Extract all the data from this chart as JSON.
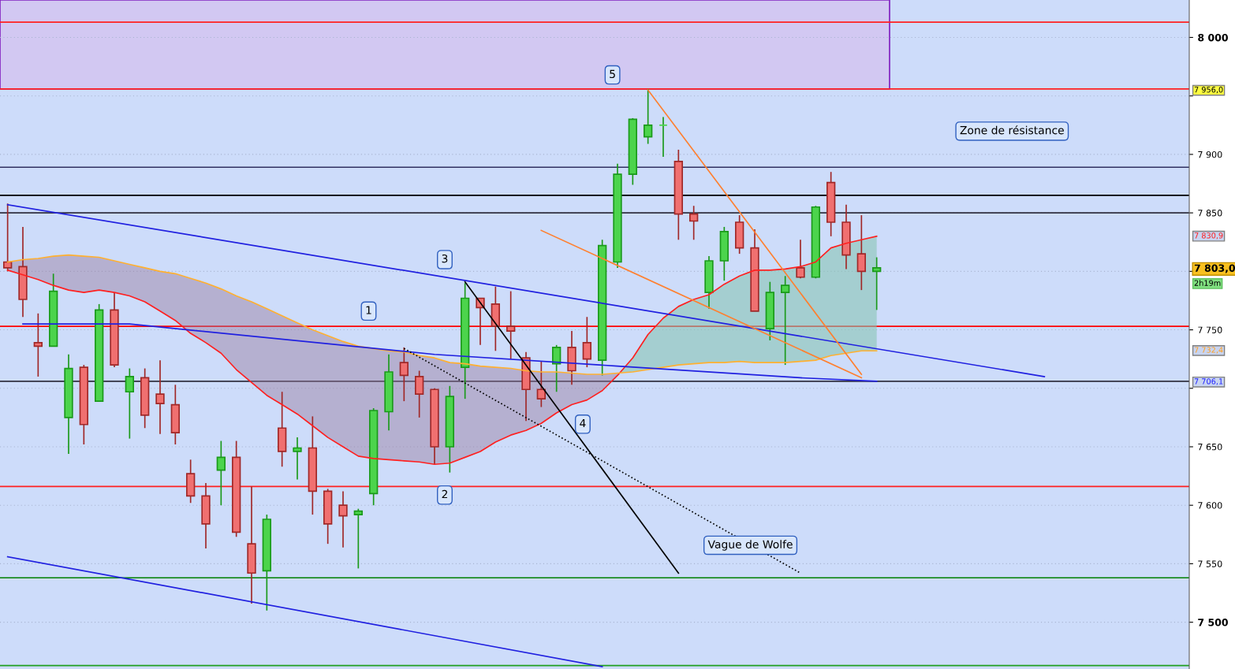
{
  "chart_data": {
    "type": "candlestick",
    "categories": [
      null,
      null,
      null,
      null,
      null,
      null,
      null,
      null,
      null,
      null,
      null,
      null,
      null,
      null,
      null,
      null,
      null,
      null,
      null,
      null,
      null,
      null,
      null,
      null,
      null,
      null,
      null,
      null,
      null,
      null,
      null,
      null,
      null,
      null,
      null,
      null,
      null,
      null,
      null,
      null,
      null,
      null,
      null,
      null,
      null,
      null,
      null,
      null,
      null,
      null,
      null,
      null,
      null,
      null,
      null,
      null,
      null,
      null,
      null,
      null,
      null,
      null,
      null,
      null,
      null,
      null,
      null,
      null,
      null,
      null,
      null,
      null,
      null,
      null,
      null,
      null,
      null,
      null
    ],
    "ohlc": [
      [
        7808,
        7858,
        7800,
        7803
      ],
      [
        7804,
        7838,
        7761,
        7776
      ],
      [
        7739,
        7764,
        7710,
        7736
      ],
      [
        7736,
        7798,
        7736,
        7783
      ],
      [
        7675,
        7729,
        7644,
        7717
      ],
      [
        7718,
        7720,
        7652,
        7669
      ],
      [
        7689,
        7772,
        7689,
        7767
      ],
      [
        7767,
        7782,
        7718,
        7720
      ],
      [
        7697,
        7717,
        7657,
        7710
      ],
      [
        7709,
        7717,
        7666,
        7677
      ],
      [
        7695,
        7724,
        7661,
        7687
      ],
      [
        7686,
        7703,
        7652,
        7662
      ],
      [
        7627,
        7639,
        7602,
        7608
      ],
      [
        7608,
        7619,
        7563,
        7584
      ],
      [
        7630,
        7655,
        7600,
        7641
      ],
      [
        7641,
        7655,
        7573,
        7577
      ],
      [
        7567,
        7616,
        7516,
        7542
      ],
      [
        7544,
        7592,
        7510,
        7588
      ],
      [
        7666,
        7697,
        7633,
        7646
      ],
      [
        7646,
        7658,
        7622,
        7649
      ],
      [
        7649,
        7676,
        7592,
        7612
      ],
      [
        7612,
        7614,
        7567,
        7584
      ],
      [
        7600,
        7612,
        7564,
        7591
      ],
      [
        7592,
        7597,
        7546,
        7595
      ],
      [
        7610,
        7683,
        7600,
        7681
      ],
      [
        7680,
        7729,
        7664,
        7714
      ],
      [
        7722,
        7735,
        7689,
        7711
      ],
      [
        7710,
        7715,
        7675,
        7695
      ],
      [
        7699,
        7700,
        7635,
        7650
      ],
      [
        7650,
        7702,
        7628,
        7693
      ],
      [
        7718,
        7790,
        7691,
        7777
      ],
      [
        7777,
        7777,
        7737,
        7769
      ],
      [
        7772,
        7787,
        7732,
        7753
      ],
      [
        7753,
        7783,
        7725,
        7749
      ],
      [
        7726,
        7731,
        7672,
        7699
      ],
      [
        7699,
        7723,
        7684,
        7691
      ],
      [
        7721,
        7737,
        7697,
        7735
      ],
      [
        7735,
        7749,
        7703,
        7715
      ],
      [
        7739,
        7761,
        7718,
        7725
      ],
      [
        7724,
        7827,
        7711,
        7822
      ],
      [
        7808,
        7892,
        7803,
        7883
      ],
      [
        7883,
        7931,
        7874,
        7930
      ],
      [
        7915,
        7956,
        7909,
        7925
      ],
      [
        7925,
        7932,
        7898,
        7925
      ],
      [
        7894,
        7904,
        7827,
        7849
      ],
      [
        7849,
        7856,
        7827,
        7843
      ],
      [
        7782,
        7813,
        7768,
        7809
      ],
      [
        7809,
        7838,
        7792,
        7834
      ],
      [
        7842,
        7848,
        7815,
        7820
      ],
      [
        7820,
        7836,
        7766,
        7766
      ],
      [
        7751,
        7791,
        7741,
        7782
      ],
      [
        7782,
        7796,
        7720,
        7788
      ],
      [
        7803,
        7827,
        7794,
        7795
      ],
      [
        7795,
        7856,
        7794,
        7855
      ],
      [
        7876,
        7885,
        7830,
        7842
      ],
      [
        7842,
        7857,
        7802,
        7814
      ],
      [
        7815,
        7848,
        7784,
        7800
      ],
      [
        7800,
        7812,
        7767,
        7803
      ],
      null,
      null,
      null,
      null,
      null,
      null,
      null,
      null,
      null,
      null,
      null,
      null,
      null,
      null,
      null,
      null,
      null,
      null,
      null,
      null
    ],
    "colors": [
      "#f07070",
      "#f07070",
      "#f07070",
      "#4cd44c",
      "#4cd44c",
      "#f07070",
      "#4cd44c",
      "#f07070",
      "#4cd44c",
      "#f07070",
      "#f07070",
      "#f07070",
      "#f07070",
      "#f07070",
      "#4cd44c",
      "#f07070",
      "#f07070",
      "#4cd44c",
      "#f07070",
      "#4cd44c",
      "#f07070",
      "#f07070",
      "#f07070",
      "#4cd44c",
      "#4cd44c",
      "#4cd44c",
      "#f07070",
      "#f07070",
      "#f07070",
      "#4cd44c",
      "#4cd44c",
      "#f07070",
      "#f07070",
      "#f07070",
      "#f07070",
      "#f07070",
      "#4cd44c",
      "#f07070",
      "#f07070",
      "#4cd44c",
      "#4cd44c",
      "#4cd44c",
      "#4cd44c",
      "#4cd44c",
      "#f07070",
      "#f07070",
      "#4cd44c",
      "#4cd44c",
      "#f07070",
      "#f07070",
      "#4cd44c",
      "#4cd44c",
      "#f07070",
      "#4cd44c",
      "#f07070",
      "#f07070",
      "#f07070",
      "#4cd44c",
      null,
      null,
      null,
      null,
      null,
      null,
      null,
      null,
      null,
      null,
      null,
      null,
      null,
      null,
      null,
      null,
      null,
      null,
      null,
      null
    ],
    "series": [
      {
        "type": "line",
        "color": "#ff2020",
        "values": [
          7801,
          7797,
          7793,
          7788,
          7784,
          7782,
          7784,
          7782,
          7779,
          7774,
          7766,
          7758,
          7747,
          7739,
          7730,
          7716,
          7705,
          7694,
          7686,
          7678,
          7668,
          7658,
          7650,
          7642,
          7640,
          7639,
          7638,
          7637,
          7635,
          7636,
          7641,
          7646,
          7654,
          7660,
          7664,
          7670,
          7679,
          7686,
          7690,
          7698,
          7711,
          7726,
          7746,
          7760,
          7770,
          7776,
          7780,
          7789,
          7796,
          7801,
          7801,
          7802,
          7804,
          7808,
          7820,
          7824,
          7827,
          7830,
          null,
          null,
          null,
          null,
          null,
          null,
          null,
          null,
          null,
          null,
          null,
          null,
          null,
          null,
          null,
          null,
          null,
          null,
          null,
          null
        ]
      },
      {
        "type": "line",
        "color": "#ffb030",
        "values": [
          7808,
          7810,
          7811,
          7813,
          7814,
          7813,
          7812,
          7809,
          7806,
          7803,
          7800,
          7798,
          7794,
          7790,
          7785,
          7779,
          7774,
          7768,
          7762,
          7756,
          7750,
          7745,
          7740,
          7736,
          7734,
          7732,
          7731,
          7728,
          7726,
          7722,
          7721,
          7719,
          7718,
          7717,
          7715,
          7714,
          7714,
          7713,
          7712,
          7712,
          7713,
          7714,
          7716,
          7718,
          7720,
          7721,
          7722,
          7722,
          7723,
          7722,
          7722,
          7722,
          7723,
          7724,
          7728,
          7730,
          7732,
          7732,
          null,
          null,
          null,
          null,
          null,
          null,
          null,
          null,
          null,
          null,
          null,
          null,
          null,
          null,
          null,
          null,
          null,
          null,
          null,
          null
        ]
      },
      {
        "type": "line",
        "color": "#2020e0",
        "values": [
          7857,
          null,
          null,
          null,
          null,
          null,
          null,
          null,
          null,
          null,
          null,
          null,
          null,
          null,
          null,
          null,
          null,
          null,
          null,
          null,
          null,
          null,
          null,
          null,
          null,
          null,
          null,
          null,
          null,
          null,
          null,
          null,
          null,
          null,
          null,
          null,
          null,
          null,
          null,
          null,
          null,
          null,
          null,
          null,
          null,
          null,
          null,
          null,
          null,
          null,
          null,
          null,
          null,
          null,
          null,
          null,
          null,
          null,
          null,
          null,
          null,
          null,
          null,
          null,
          null,
          null,
          null,
          null,
          7710,
          null,
          null,
          null,
          null,
          null,
          null,
          null,
          null,
          null
        ]
      },
      {
        "type": "line",
        "color": "#2020e0",
        "values": [
          7556,
          null,
          null,
          null,
          null,
          null,
          null,
          null,
          null,
          null,
          null,
          null,
          null,
          null,
          null,
          null,
          null,
          null,
          null,
          null,
          null,
          null,
          null,
          null,
          null,
          null,
          null,
          null,
          null,
          null,
          null,
          null,
          null,
          null,
          null,
          null,
          null,
          null,
          null,
          7462,
          null,
          null,
          null,
          null,
          null,
          null,
          null,
          null,
          null,
          null,
          null,
          null,
          null,
          null,
          null,
          null,
          null,
          null,
          null,
          null,
          null,
          null,
          null,
          null,
          null,
          null,
          null,
          null,
          null,
          null,
          null,
          null,
          null,
          null,
          null,
          null,
          null,
          null
        ]
      },
      {
        "type": "line",
        "color": "#2020e0",
        "values": [
          null,
          7755,
          null,
          null,
          null,
          null,
          null,
          null,
          7755,
          null,
          null,
          null,
          null,
          null,
          null,
          null,
          null,
          null,
          null,
          null,
          null,
          null,
          null,
          null,
          null,
          null,
          null,
          null,
          7729,
          null,
          null,
          null,
          null,
          null,
          null,
          null,
          null,
          null,
          null,
          null,
          7719,
          null,
          null,
          null,
          null,
          null,
          null,
          null,
          null,
          null,
          null,
          null,
          7709,
          null,
          null,
          null,
          null,
          7706,
          null,
          null,
          null,
          null,
          null,
          null,
          null,
          null,
          null,
          null,
          null,
          null,
          null,
          null,
          null,
          null,
          null,
          null,
          null,
          null
        ]
      },
      {
        "type": "line",
        "color": "#ff8030",
        "values": [
          null,
          null,
          null,
          null,
          null,
          null,
          null,
          null,
          null,
          null,
          null,
          null,
          null,
          null,
          null,
          null,
          null,
          null,
          null,
          null,
          null,
          null,
          null,
          null,
          null,
          null,
          null,
          null,
          null,
          null,
          null,
          null,
          null,
          null,
          null,
          null,
          null,
          null,
          null,
          null,
          null,
          null,
          7955,
          null,
          null,
          null,
          null,
          null,
          null,
          null,
          null,
          null,
          null,
          null,
          null,
          null,
          7712,
          null,
          null,
          null,
          null,
          null,
          null,
          null,
          null,
          null,
          null,
          null,
          null,
          null,
          null,
          null,
          null,
          null,
          null,
          null,
          null,
          null
        ]
      },
      {
        "type": "line",
        "color": "#ff8030",
        "values": [
          null,
          null,
          null,
          null,
          null,
          null,
          null,
          null,
          null,
          null,
          null,
          null,
          null,
          null,
          null,
          null,
          null,
          null,
          null,
          null,
          null,
          null,
          null,
          null,
          null,
          null,
          null,
          null,
          null,
          null,
          null,
          null,
          null,
          null,
          null,
          7835,
          null,
          null,
          null,
          null,
          null,
          null,
          null,
          null,
          null,
          null,
          null,
          null,
          null,
          null,
          null,
          null,
          null,
          null,
          null,
          null,
          7709,
          null,
          null,
          null,
          null,
          null,
          null,
          null,
          null,
          null,
          null,
          null,
          null,
          null,
          null,
          null,
          null,
          null,
          null,
          null,
          null,
          null
        ]
      },
      {
        "type": "line",
        "color": "#000000",
        "values": [
          null,
          null,
          null,
          null,
          null,
          null,
          null,
          null,
          null,
          null,
          null,
          null,
          null,
          null,
          null,
          null,
          null,
          null,
          null,
          null,
          null,
          null,
          null,
          null,
          null,
          null,
          null,
          null,
          null,
          null,
          7791,
          null,
          null,
          null,
          null,
          null,
          null,
          null,
          null,
          null,
          null,
          null,
          null,
          null,
          7542,
          null,
          null,
          null,
          null,
          null,
          null,
          null,
          null,
          null,
          null,
          null,
          null,
          null,
          null,
          null,
          null,
          null,
          null,
          null,
          null,
          null,
          null,
          null,
          null,
          null,
          null,
          null,
          null,
          null,
          null,
          null,
          null,
          null
        ]
      },
      {
        "type": "line",
        "color": "#000000",
        "line_style": "dotted",
        "values": [
          null,
          null,
          null,
          null,
          null,
          null,
          null,
          null,
          null,
          null,
          null,
          null,
          null,
          null,
          null,
          null,
          null,
          null,
          null,
          null,
          null,
          null,
          null,
          null,
          null,
          null,
          7734,
          null,
          null,
          null,
          null,
          null,
          null,
          null,
          null,
          null,
          null,
          null,
          null,
          null,
          null,
          null,
          null,
          null,
          null,
          null,
          null,
          null,
          null,
          null,
          null,
          null,
          7542,
          null,
          null,
          null,
          null,
          null,
          null,
          null,
          null,
          null,
          null,
          null,
          null,
          null,
          null,
          null,
          null,
          null,
          null,
          null,
          null,
          null,
          null,
          null,
          null,
          null
        ]
      }
    ],
    "ylim": [
      7460,
      8032
    ],
    "yticks": [
      {
        "value": 7500,
        "label": "7 500"
      },
      {
        "value": 7550,
        "label": "7 550"
      },
      {
        "value": 7600,
        "label": "7 600"
      },
      {
        "value": 7650,
        "label": "7 650"
      },
      {
        "value": 7700,
        "label": null
      },
      {
        "value": 7750,
        "label": "7 750"
      },
      {
        "value": 7800,
        "label": null
      },
      {
        "value": 7850,
        "label": "7 850"
      },
      {
        "value": 7900,
        "label": "7 900"
      },
      {
        "value": 7950,
        "label": null
      },
      {
        "value": 8000,
        "label": "8 000"
      }
    ],
    "ref_lines": [
      {
        "axis": "y",
        "value": 8013,
        "color": "#ff2020"
      },
      {
        "axis": "y",
        "value": 7956,
        "color": "#ff2020"
      },
      {
        "axis": "y",
        "value": 7889,
        "color": "#303060"
      },
      {
        "axis": "y",
        "value": 7865,
        "color": "#000000"
      },
      {
        "axis": "y",
        "value": 7850,
        "color": "#303040"
      },
      {
        "axis": "y",
        "value": 7753,
        "color": "#ff0000"
      },
      {
        "axis": "y",
        "value": 7706,
        "color": "#303040"
      },
      {
        "axis": "y",
        "value": 7616,
        "color": "#ff2020"
      },
      {
        "axis": "y",
        "value": 7538,
        "color": "#008000"
      },
      {
        "axis": "y",
        "value": 7463,
        "color": "#20a020"
      }
    ],
    "bands": [
      {
        "axis": "y",
        "from": 7956,
        "to": 8032,
        "color": "#d2c8f2"
      }
    ],
    "annotations": [
      "1",
      "2",
      "3",
      "4",
      "5",
      "Vague de Wolfe",
      "Zone de résistance",
      "7 956,0",
      "7 830,9",
      "7 803,0",
      "2h19m",
      "7 732,4",
      "7 706,1"
    ],
    "grid": "y",
    "tick_labels": "y"
  }
}
